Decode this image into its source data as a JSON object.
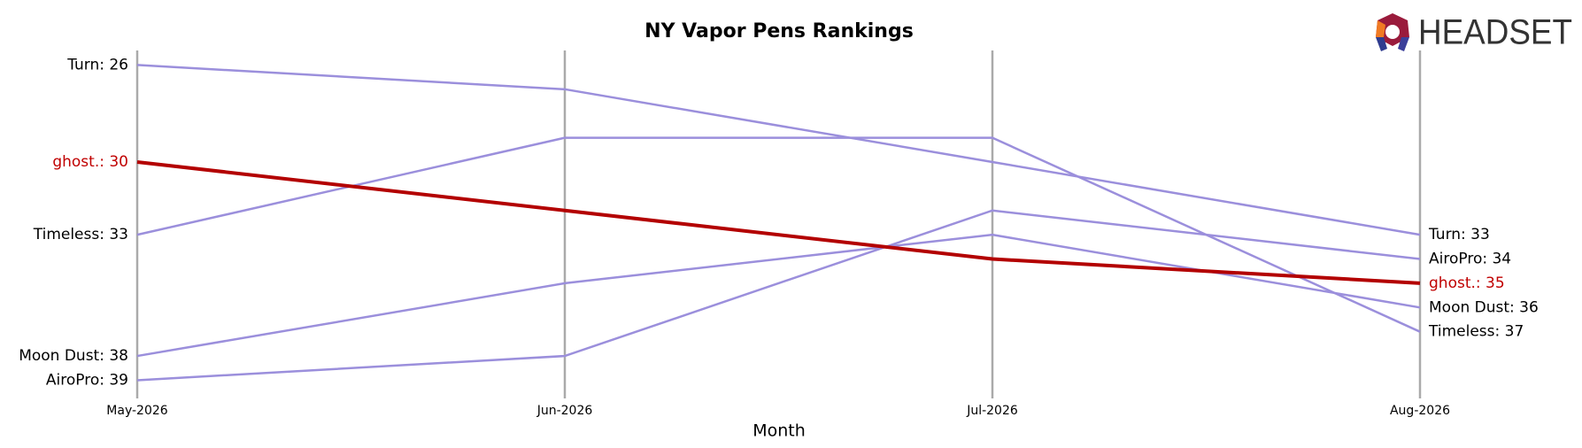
{
  "chart_data": {
    "type": "bump",
    "title": "NY Vapor Pens Rankings",
    "xlabel": "Month",
    "categories": [
      "May-2026",
      "Jun-2026",
      "Jul-2026",
      "Aug-2026"
    ],
    "ylim": [
      25.4,
      39.75
    ],
    "y_inverted": true,
    "series": [
      {
        "name": "Turn",
        "color": "#9b8fdc",
        "label_color": "#000000",
        "values": [
          26,
          27,
          30,
          33
        ],
        "value_labels": [
          "Turn: 26",
          null,
          null,
          "Turn: 33"
        ]
      },
      {
        "name": "Timeless",
        "color": "#9b8fdc",
        "label_color": "#000000",
        "values": [
          33,
          29,
          29,
          37
        ],
        "value_labels": [
          "Timeless: 33",
          null,
          null,
          "Timeless: 37"
        ]
      },
      {
        "name": "Moon Dust",
        "color": "#9b8fdc",
        "label_color": "#000000",
        "values": [
          38,
          35,
          33,
          36
        ],
        "value_labels": [
          "Moon Dust: 38",
          null,
          null,
          "Moon Dust: 36"
        ]
      },
      {
        "name": "AiroPro",
        "color": "#9b8fdc",
        "label_color": "#000000",
        "values": [
          39,
          38,
          32,
          34
        ],
        "value_labels": [
          "AiroPro: 39",
          null,
          null,
          "AiroPro: 34"
        ]
      },
      {
        "name": "ghost.",
        "color": "#b30000",
        "label_color": "#c00000",
        "values": [
          30,
          32,
          34,
          35
        ],
        "value_labels": [
          "ghost.: 30",
          null,
          null,
          "ghost.: 35"
        ]
      }
    ]
  },
  "logo": "HEADSET"
}
